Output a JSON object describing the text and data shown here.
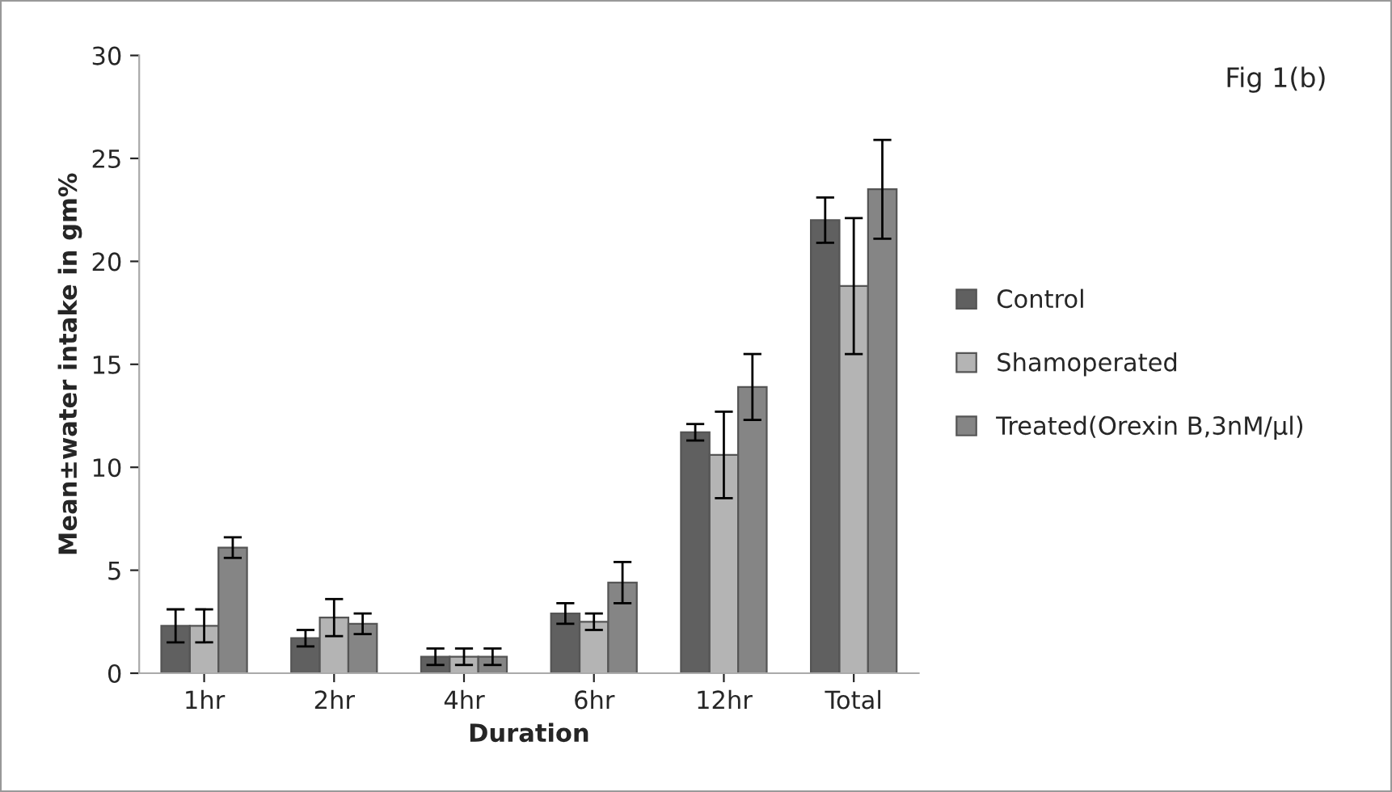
{
  "chart_data": {
    "type": "bar",
    "xlabel": "Duration",
    "ylabel": "Mean±water intake in gm%",
    "annotations": [
      "Fig 1(b)"
    ],
    "categories": [
      "1hr",
      "2hr",
      "4hr",
      "6hr",
      "12hr",
      "Total"
    ],
    "series": [
      {
        "name": "Control",
        "color": "#606060",
        "values": [
          2.3,
          1.7,
          0.8,
          2.9,
          11.7,
          22.0
        ],
        "errors": [
          0.8,
          0.4,
          0.4,
          0.5,
          0.4,
          1.1
        ]
      },
      {
        "name": "Shamoperated",
        "color": "#b4b4b4",
        "values": [
          2.3,
          2.7,
          0.8,
          2.5,
          10.6,
          18.8
        ],
        "errors": [
          0.8,
          0.9,
          0.4,
          0.4,
          2.1,
          3.3
        ]
      },
      {
        "name": "Treated(Orexin B,3nM/µl)",
        "color": "#858585",
        "values": [
          6.1,
          2.4,
          0.8,
          4.4,
          13.9,
          23.5
        ],
        "errors": [
          0.5,
          0.5,
          0.4,
          1.0,
          1.6,
          2.4
        ]
      }
    ],
    "ylim": [
      0,
      30
    ],
    "yticks": [
      0,
      5,
      10,
      15,
      20,
      25,
      30
    ],
    "grid": false,
    "legend": "right"
  }
}
